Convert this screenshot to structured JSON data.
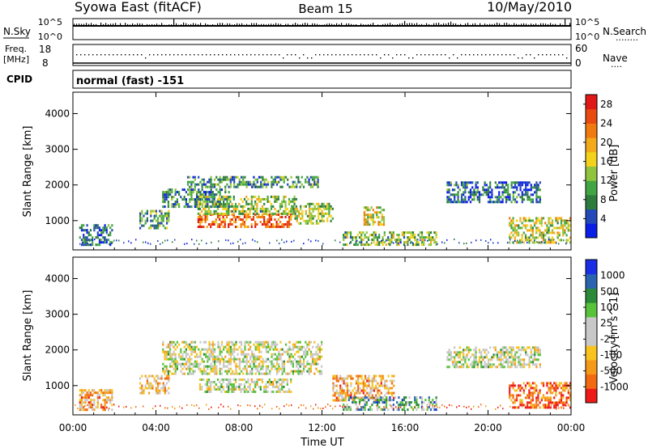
{
  "header": {
    "station": "Syowa East (fitACF)",
    "beam": "Beam 15",
    "date": "10/May/2010"
  },
  "panel_labels": {
    "nsky": "N.Sky",
    "nsearch": "N.Search",
    "nsearch_dots": "........",
    "freq_line1": "Freq.",
    "freq_line2": "[MHz]",
    "nave": "Nave",
    "nave_dots": "....",
    "cpid": "CPID",
    "cpid_value": "normal (fast) -151"
  },
  "noise_axis": {
    "top": "10^5",
    "bottom": "10^0"
  },
  "freq_axis": {
    "left": [
      "18",
      "8"
    ],
    "right": [
      "60",
      "0"
    ]
  },
  "colors": {
    "power": [
      "#0a1ee6",
      "#2449b8",
      "#2e7c3c",
      "#41a544",
      "#8fc43c",
      "#f2d21a",
      "#f2a91a",
      "#f07a0f",
      "#e84a10",
      "#e01818"
    ],
    "velocity": [
      "#ee1a1a",
      "#f26a10",
      "#f59a18",
      "#f7c31c",
      "#c8c8c8",
      "#c8c8c8",
      "#58c23a",
      "#2a8a3a",
      "#2a64b0",
      "#1a2ee6"
    ]
  },
  "chart_data": [
    {
      "type": "heatmap",
      "panel": "power",
      "xlabel": "Time UT",
      "ylabel": "Slant Range [km]",
      "x_ticks": [
        "00:00",
        "04:00",
        "08:00",
        "12:00",
        "16:00",
        "20:00",
        "00:00"
      ],
      "y_ticks": [
        "1000",
        "2000",
        "3000",
        "4000"
      ],
      "ylim": [
        180,
        4600
      ],
      "xlim_hours": [
        0,
        24
      ],
      "colorbar_label": "Power [dB]",
      "colorbar_ticks": [
        "4",
        "8",
        "12",
        "16",
        "20",
        "24",
        "28"
      ],
      "colorbar_range": [
        0,
        30
      ],
      "echo_regions": [
        {
          "t0": 0.3,
          "t1": 1.9,
          "r0": 300,
          "r1": 900,
          "level": 0.2
        },
        {
          "t0": 3.2,
          "t1": 4.6,
          "r0": 800,
          "r1": 1300,
          "level": 0.35
        },
        {
          "t0": 4.3,
          "t1": 7.5,
          "r0": 1400,
          "r1": 1900,
          "level": 0.25
        },
        {
          "t0": 5.5,
          "t1": 11.8,
          "r0": 1950,
          "r1": 2250,
          "level": 0.3
        },
        {
          "t0": 6.0,
          "t1": 10.5,
          "r0": 850,
          "r1": 1200,
          "level": 0.8
        },
        {
          "t0": 6.0,
          "t1": 10.8,
          "r0": 1200,
          "r1": 1700,
          "level": 0.4
        },
        {
          "t0": 10.5,
          "t1": 12.5,
          "r0": 900,
          "r1": 1500,
          "level": 0.45
        },
        {
          "t0": 14.0,
          "t1": 15.0,
          "r0": 900,
          "r1": 1400,
          "level": 0.55
        },
        {
          "t0": 13.0,
          "t1": 17.5,
          "r0": 350,
          "r1": 700,
          "level": 0.4
        },
        {
          "t0": 18.0,
          "t1": 22.5,
          "r0": 1500,
          "r1": 2100,
          "level": 0.2
        },
        {
          "t0": 21.0,
          "t1": 24.0,
          "r0": 400,
          "r1": 1100,
          "level": 0.5
        }
      ]
    },
    {
      "type": "heatmap",
      "panel": "velocity",
      "xlabel": "Time UT",
      "ylabel": "Slant Range [km]",
      "x_ticks": [
        "00:00",
        "04:00",
        "08:00",
        "12:00",
        "16:00",
        "20:00",
        "00:00"
      ],
      "y_ticks": [
        "1000",
        "2000",
        "3000",
        "4000"
      ],
      "ylim": [
        180,
        4600
      ],
      "xlim_hours": [
        0,
        24
      ],
      "colorbar_label": "Velocity [m s^-1]",
      "colorbar_ticks": [
        "1000",
        "500",
        "100",
        "25",
        "-25",
        "-100",
        "-500",
        "-1000"
      ],
      "echo_regions": [
        {
          "t0": 0.3,
          "t1": 1.9,
          "r0": 300,
          "r1": 900,
          "level": 0.3
        },
        {
          "t0": 3.2,
          "t1": 4.6,
          "r0": 800,
          "r1": 1300,
          "level": 0.35
        },
        {
          "t0": 4.3,
          "t1": 12.0,
          "r0": 1300,
          "r1": 2250,
          "level": 0.5
        },
        {
          "t0": 6.0,
          "t1": 10.5,
          "r0": 850,
          "r1": 1200,
          "level": 0.5
        },
        {
          "t0": 12.5,
          "t1": 15.5,
          "r0": 600,
          "r1": 1300,
          "level": 0.3
        },
        {
          "t0": 13.0,
          "t1": 17.5,
          "r0": 350,
          "r1": 700,
          "level": 0.7
        },
        {
          "t0": 18.0,
          "t1": 22.5,
          "r0": 1500,
          "r1": 2100,
          "level": 0.5
        },
        {
          "t0": 21.0,
          "t1": 24.0,
          "r0": 400,
          "r1": 1100,
          "level": 0.15
        }
      ]
    }
  ]
}
